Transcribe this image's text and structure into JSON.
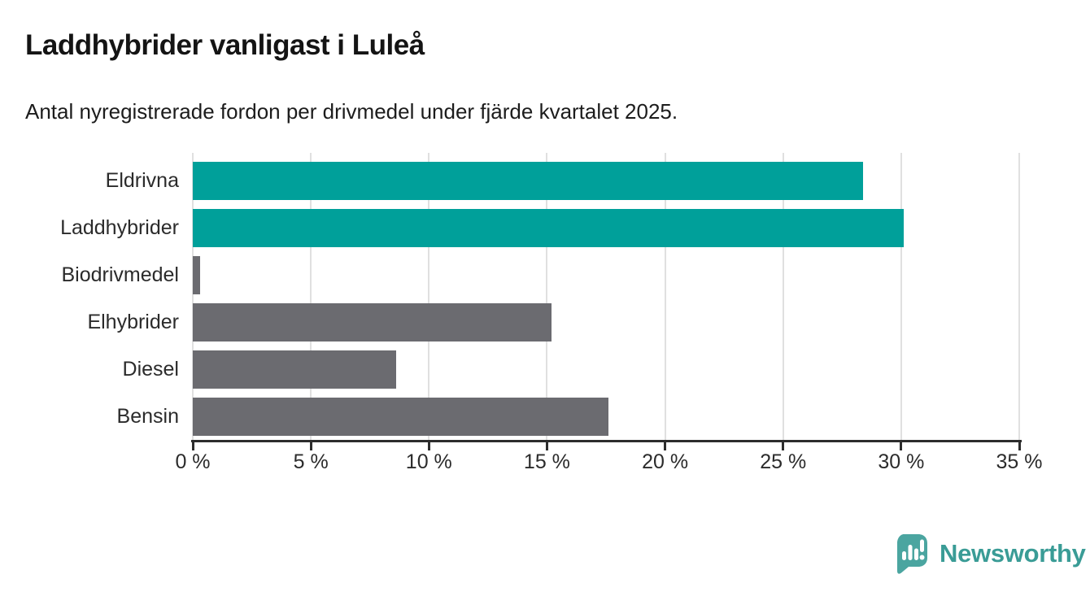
{
  "header": {
    "title": "Laddhybrider vanligast i Luleå",
    "subtitle": "Antal nyregistrerade fordon per drivmedel under fjärde kvartalet 2025."
  },
  "chart_data": {
    "type": "bar",
    "orientation": "horizontal",
    "title": "Laddhybrider vanligast i Luleå",
    "subtitle": "Antal nyregistrerade fordon per drivmedel under fjärde kvartalet 2025.",
    "categories": [
      "Eldrivna",
      "Laddhybrider",
      "Biodrivmedel",
      "Elhybrider",
      "Diesel",
      "Bensin"
    ],
    "values": [
      28.4,
      30.1,
      0.3,
      15.2,
      8.6,
      17.6
    ],
    "unit": "%",
    "xlim": [
      0,
      35
    ],
    "x_tick_values": [
      0,
      5,
      10,
      15,
      20,
      25,
      30,
      35
    ],
    "x_tick_labels": [
      "0 %",
      "5 %",
      "10 %",
      "15 %",
      "20 %",
      "25 %",
      "30 %",
      "35 %"
    ],
    "grid": true,
    "legend": "none",
    "bar_colors": [
      "#00a09a",
      "#00a09a",
      "#6b6b70",
      "#6b6b70",
      "#6b6b70",
      "#6b6b70"
    ],
    "colors": {
      "highlight": "#00a09a",
      "default": "#6b6b70",
      "gridline": "#e0e0e0",
      "axis": "#2d2d2d"
    }
  },
  "footer": {
    "brand": "Newsworthy",
    "brand_color": "#3a9c96"
  }
}
